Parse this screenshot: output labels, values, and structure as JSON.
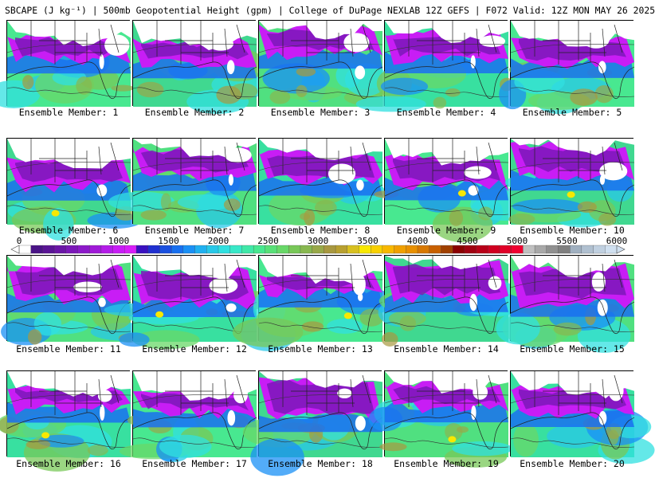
{
  "header": {
    "title": "SBCAPE (J kg⁻¹) | 500mb Geopotential Height (gpm) | College of DuPage NEXLAB 12Z GEFS | F072 Valid: 12Z MON MAY 26 2025"
  },
  "panels": [
    {
      "caption": "Ensemble Member: 1",
      "member": 1
    },
    {
      "caption": "Ensemble Member: 2",
      "member": 2
    },
    {
      "caption": "Ensemble Member: 3",
      "member": 3
    },
    {
      "caption": "Ensemble Member: 4",
      "member": 4
    },
    {
      "caption": "Ensemble Member: 5",
      "member": 5
    },
    {
      "caption": "Ensemble Member: 6",
      "member": 6
    },
    {
      "caption": "Ensemble Member: 7",
      "member": 7
    },
    {
      "caption": "Ensemble Member: 8",
      "member": 8
    },
    {
      "caption": "Ensemble Member: 9",
      "member": 9
    },
    {
      "caption": "Ensemble Member: 10",
      "member": 10
    },
    {
      "caption": "Ensemble Member: 11",
      "member": 11
    },
    {
      "caption": "Ensemble Member: 12",
      "member": 12
    },
    {
      "caption": "Ensemble Member: 13",
      "member": 13
    },
    {
      "caption": "Ensemble Member: 14",
      "member": 14
    },
    {
      "caption": "Ensemble Member: 15",
      "member": 15
    },
    {
      "caption": "Ensemble Member: 16",
      "member": 16
    },
    {
      "caption": "Ensemble Member: 17",
      "member": 17
    },
    {
      "caption": "Ensemble Member: 18",
      "member": 18
    },
    {
      "caption": "Ensemble Member: 19",
      "member": 19
    },
    {
      "caption": "Ensemble Member: 20",
      "member": 20
    }
  ],
  "colorbar": {
    "ticks": [
      "0",
      "500",
      "1000",
      "1500",
      "2000",
      "2500",
      "3000",
      "3500",
      "4000",
      "4500",
      "5000",
      "5500",
      "6000"
    ],
    "colors": [
      "#ffffff",
      "#4a1486",
      "#5a1595",
      "#6a16a6",
      "#7b18b8",
      "#8c19c9",
      "#a01ad8",
      "#b41ce8",
      "#c81df5",
      "#d81ef8",
      "#3a10c0",
      "#2030d0",
      "#1a50e0",
      "#1870f0",
      "#1a90f5",
      "#20b0f0",
      "#28c8e8",
      "#30e0e0",
      "#38e8c8",
      "#40e8a8",
      "#48e890",
      "#58e078",
      "#68d868",
      "#78c858",
      "#88b850",
      "#98a848",
      "#a89840",
      "#b8a030",
      "#d8c020",
      "#f8e800",
      "#f8d000",
      "#f8b800",
      "#f0a000",
      "#e89000",
      "#d87800",
      "#c86000",
      "#a04000",
      "#8a0000",
      "#a00010",
      "#b80018",
      "#d00020",
      "#e00028",
      "#f00030",
      "#c0c0c0",
      "#a8a8a8",
      "#909090",
      "#808080",
      "#a0b0c0",
      "#b0c0d0",
      "#c0d0e0",
      "#d0e0f0"
    ],
    "range": [
      0,
      6000
    ]
  },
  "colors": {
    "instability_low": "#6a16a6",
    "instability_mid": "#c81df5",
    "moist_blue": "#1a70f0",
    "cyan": "#28c8e8",
    "green": "#48e890",
    "yellow": "#f8e800",
    "land_white": "#ffffff"
  }
}
